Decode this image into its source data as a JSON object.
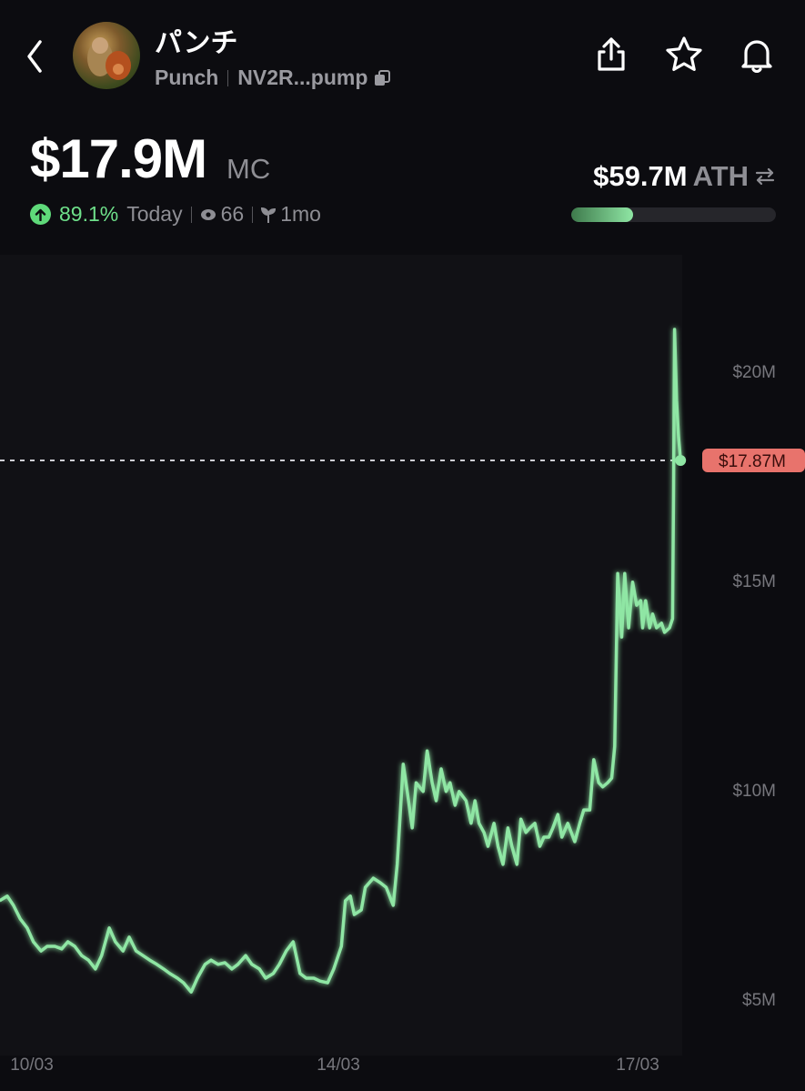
{
  "header": {
    "name": "パンチ",
    "ticker": "Punch",
    "address": "NV2R...pump",
    "icons": [
      "back-chevron-icon",
      "share-icon",
      "star-icon",
      "bell-icon",
      "copy-icon"
    ]
  },
  "market_cap": {
    "value": "$17.9M",
    "label": "MC",
    "change": "89.1%",
    "period": "Today",
    "views": "66",
    "age": "1mo"
  },
  "ath": {
    "value": "$59.7M",
    "label": "ATH",
    "progress_fraction": 0.3
  },
  "colors": {
    "line": "#8fe6a4",
    "up": "#5fd97a",
    "price_tag": "#e8736c",
    "background": "#0c0c10"
  },
  "chart_data": {
    "type": "line",
    "current_label": "$17.87M",
    "current_value": 17.87,
    "x_ticks": [
      {
        "value": 10,
        "label": "10/03"
      },
      {
        "value": 14,
        "label": "14/03"
      },
      {
        "value": 17,
        "label": "17/03"
      }
    ],
    "y_ticks": [
      {
        "value": 20,
        "label": "$20M"
      },
      {
        "value": 15,
        "label": "$15M"
      },
      {
        "value": 10,
        "label": "$10M"
      },
      {
        "value": 5,
        "label": "$5M"
      }
    ],
    "x_unit": "day of March",
    "y_unit": "$M",
    "points": [
      [
        9.58,
        7.35
      ],
      [
        9.68,
        7.46
      ],
      [
        9.76,
        7.24
      ],
      [
        9.85,
        6.91
      ],
      [
        9.94,
        6.7
      ],
      [
        10.02,
        6.37
      ],
      [
        10.12,
        6.15
      ],
      [
        10.2,
        6.26
      ],
      [
        10.3,
        6.26
      ],
      [
        10.39,
        6.2
      ],
      [
        10.47,
        6.37
      ],
      [
        10.56,
        6.26
      ],
      [
        10.65,
        6.04
      ],
      [
        10.74,
        5.93
      ],
      [
        10.83,
        5.72
      ],
      [
        10.91,
        6.04
      ],
      [
        11.01,
        6.7
      ],
      [
        11.09,
        6.37
      ],
      [
        11.19,
        6.15
      ],
      [
        11.27,
        6.48
      ],
      [
        11.36,
        6.15
      ],
      [
        11.45,
        6.04
      ],
      [
        11.54,
        5.93
      ],
      [
        11.63,
        5.83
      ],
      [
        11.72,
        5.72
      ],
      [
        11.8,
        5.61
      ],
      [
        11.9,
        5.5
      ],
      [
        11.98,
        5.39
      ],
      [
        12.08,
        5.17
      ],
      [
        12.16,
        5.5
      ],
      [
        12.26,
        5.83
      ],
      [
        12.34,
        5.93
      ],
      [
        12.43,
        5.83
      ],
      [
        12.52,
        5.87
      ],
      [
        12.61,
        5.72
      ],
      [
        12.69,
        5.83
      ],
      [
        12.79,
        6.04
      ],
      [
        12.87,
        5.83
      ],
      [
        12.97,
        5.72
      ],
      [
        13.05,
        5.5
      ],
      [
        13.15,
        5.61
      ],
      [
        13.23,
        5.83
      ],
      [
        13.32,
        6.15
      ],
      [
        13.41,
        6.37
      ],
      [
        13.5,
        5.61
      ],
      [
        13.58,
        5.5
      ],
      [
        13.68,
        5.5
      ],
      [
        13.76,
        5.43
      ],
      [
        13.86,
        5.39
      ],
      [
        13.94,
        5.72
      ],
      [
        14.03,
        6.26
      ],
      [
        14.07,
        7.35
      ],
      [
        14.12,
        7.46
      ],
      [
        14.16,
        7.02
      ],
      [
        14.23,
        7.13
      ],
      [
        14.27,
        7.67
      ],
      [
        14.35,
        7.89
      ],
      [
        14.42,
        7.78
      ],
      [
        14.48,
        7.67
      ],
      [
        14.55,
        7.24
      ],
      [
        14.59,
        8.22
      ],
      [
        14.65,
        10.61
      ],
      [
        14.69,
        9.96
      ],
      [
        14.74,
        9.09
      ],
      [
        14.78,
        10.17
      ],
      [
        14.85,
        9.96
      ],
      [
        14.89,
        10.93
      ],
      [
        14.94,
        10.17
      ],
      [
        14.98,
        9.74
      ],
      [
        15.03,
        10.5
      ],
      [
        15.08,
        9.96
      ],
      [
        15.12,
        10.17
      ],
      [
        15.17,
        9.63
      ],
      [
        15.21,
        9.96
      ],
      [
        15.28,
        9.74
      ],
      [
        15.33,
        9.2
      ],
      [
        15.37,
        9.74
      ],
      [
        15.41,
        9.2
      ],
      [
        15.46,
        8.98
      ],
      [
        15.5,
        8.65
      ],
      [
        15.56,
        9.2
      ],
      [
        15.6,
        8.65
      ],
      [
        15.65,
        8.22
      ],
      [
        15.7,
        9.09
      ],
      [
        15.74,
        8.65
      ],
      [
        15.79,
        8.22
      ],
      [
        15.83,
        9.3
      ],
      [
        15.88,
        8.98
      ],
      [
        15.92,
        9.09
      ],
      [
        15.97,
        9.2
      ],
      [
        16.02,
        8.65
      ],
      [
        16.06,
        8.87
      ],
      [
        16.11,
        8.87
      ],
      [
        16.15,
        9.09
      ],
      [
        16.2,
        9.41
      ],
      [
        16.24,
        8.87
      ],
      [
        16.3,
        9.2
      ],
      [
        16.37,
        8.76
      ],
      [
        16.42,
        9.2
      ],
      [
        16.46,
        9.52
      ],
      [
        16.52,
        9.52
      ],
      [
        16.56,
        10.72
      ],
      [
        16.61,
        10.17
      ],
      [
        16.65,
        10.07
      ],
      [
        16.7,
        10.17
      ],
      [
        16.74,
        10.28
      ],
      [
        16.77,
        11.04
      ],
      [
        16.8,
        15.17
      ],
      [
        16.84,
        13.65
      ],
      [
        16.87,
        15.17
      ],
      [
        16.91,
        13.87
      ],
      [
        16.95,
        14.96
      ],
      [
        16.99,
        14.41
      ],
      [
        17.03,
        14.52
      ],
      [
        17.05,
        13.87
      ],
      [
        17.08,
        14.52
      ],
      [
        17.12,
        13.87
      ],
      [
        17.15,
        14.2
      ],
      [
        17.19,
        13.87
      ],
      [
        17.24,
        13.98
      ],
      [
        17.27,
        13.76
      ],
      [
        17.32,
        13.87
      ],
      [
        17.35,
        14.09
      ],
      [
        17.36,
        17.13
      ],
      [
        17.37,
        21.0
      ],
      [
        17.39,
        19.3
      ],
      [
        17.41,
        18.43
      ],
      [
        17.43,
        17.87
      ]
    ]
  }
}
